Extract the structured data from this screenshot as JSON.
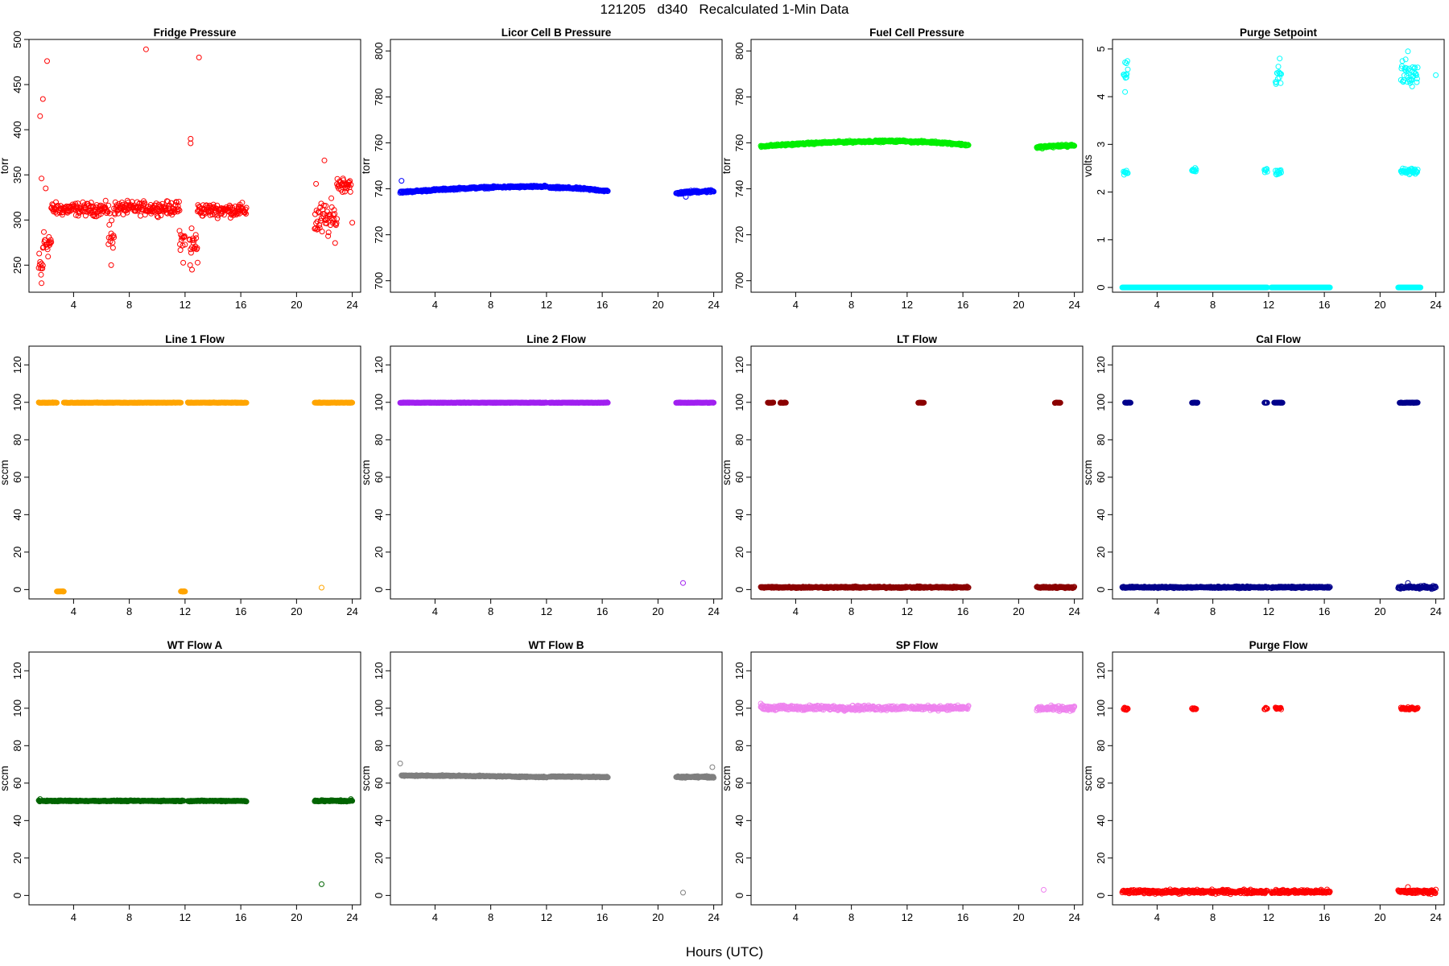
{
  "figure": {
    "title": "121205   d340   Recalculated 1-Min Data",
    "xlabel": "Hours (UTC)"
  },
  "chart_data": [
    {
      "type": "scatter",
      "title": "Fridge Pressure",
      "ylabel": "torr",
      "color": "#ff0000",
      "xlim": [
        0.8,
        24.6
      ],
      "ylim": [
        220,
        500
      ],
      "xticks": [
        4,
        8,
        12,
        16,
        20,
        24
      ],
      "yticks": [
        250,
        300,
        350,
        400,
        450,
        500
      ],
      "segments": [
        {
          "x0": 1.5,
          "x1": 1.8,
          "y": 245,
          "noise": 15
        },
        {
          "x0": 1.8,
          "x1": 2.4,
          "y": 275,
          "noise": 12
        },
        {
          "x0": 2.4,
          "x1": 6.5,
          "y": 312,
          "noise": 5
        },
        {
          "x0": 6.5,
          "x1": 6.9,
          "y": 285,
          "noise": 18
        },
        {
          "x0": 6.9,
          "x1": 11.6,
          "y": 313,
          "noise": 5
        },
        {
          "x0": 11.6,
          "x1": 12.0,
          "y": 275,
          "noise": 14
        },
        {
          "x0": 12.3,
          "x1": 12.9,
          "y": 272,
          "noise": 18
        },
        {
          "x0": 12.9,
          "x1": 16.4,
          "y": 311,
          "noise": 5
        },
        {
          "x0": 21.3,
          "x1": 22.9,
          "y": 300,
          "noise": 14
        },
        {
          "x0": 22.9,
          "x1": 23.9,
          "y": 340,
          "noise": 6
        }
      ],
      "points": [
        [
          1.6,
          415
        ],
        [
          1.7,
          346
        ],
        [
          1.8,
          434
        ],
        [
          2.1,
          476
        ],
        [
          9.2,
          489
        ],
        [
          12.4,
          390
        ],
        [
          12.4,
          385
        ],
        [
          13.0,
          480
        ],
        [
          22.0,
          366
        ],
        [
          24.0,
          297
        ],
        [
          21.4,
          340
        ],
        [
          2.0,
          335
        ],
        [
          6.7,
          250
        ],
        [
          12.5,
          245
        ],
        [
          1.7,
          230
        ]
      ]
    },
    {
      "type": "scatter",
      "title": "Licor Cell B Pressure",
      "ylabel": "torr",
      "color": "#0000ff",
      "xlim": [
        0.8,
        24.6
      ],
      "ylim": [
        695,
        805
      ],
      "xticks": [
        4,
        8,
        12,
        16,
        20,
        24
      ],
      "yticks": [
        700,
        720,
        740,
        760,
        780,
        800
      ],
      "segments": [
        {
          "x0": 1.5,
          "x1": 12.0,
          "y0": 738.5,
          "y1": 741,
          "noise": 0.3
        },
        {
          "x0": 12.2,
          "x1": 16.4,
          "y0": 740.5,
          "y1": 739,
          "noise": 0.3
        },
        {
          "x0": 21.3,
          "x1": 24.0,
          "y0": 738,
          "y1": 739,
          "noise": 0.4
        }
      ],
      "points": [
        [
          1.6,
          743.5
        ],
        [
          22.0,
          736.5
        ]
      ]
    },
    {
      "type": "scatter",
      "title": "Fuel Cell Pressure",
      "ylabel": "torr",
      "color": "#00ee00",
      "xlim": [
        0.8,
        24.6
      ],
      "ylim": [
        695,
        805
      ],
      "xticks": [
        4,
        8,
        12,
        16,
        20,
        24
      ],
      "yticks": [
        700,
        720,
        740,
        760,
        780,
        800
      ],
      "segments": [
        {
          "x0": 1.5,
          "x1": 12.0,
          "y0": 758.5,
          "y1": 760.8,
          "noise": 0.3
        },
        {
          "x0": 12.2,
          "x1": 16.4,
          "y0": 760.5,
          "y1": 759,
          "noise": 0.3
        },
        {
          "x0": 21.3,
          "x1": 24.0,
          "y0": 758,
          "y1": 758.8,
          "noise": 0.4
        }
      ],
      "points": []
    },
    {
      "type": "scatter",
      "title": "Purge Setpoint",
      "ylabel": "volts",
      "color": "#00ffff",
      "xlim": [
        0.8,
        24.6
      ],
      "ylim": [
        -0.1,
        5.2
      ],
      "xticks": [
        4,
        8,
        12,
        16,
        20,
        24
      ],
      "yticks": [
        0,
        1,
        2,
        3,
        4,
        5
      ],
      "segments": [
        {
          "x0": 1.5,
          "x1": 11.9,
          "y": 0,
          "noise": 0
        },
        {
          "x0": 12.2,
          "x1": 16.4,
          "y": 0,
          "noise": 0
        },
        {
          "x0": 21.3,
          "x1": 22.9,
          "y": 0,
          "noise": 0
        },
        {
          "x0": 1.6,
          "x1": 1.9,
          "y": 2.4,
          "noise": 0.04
        },
        {
          "x0": 6.5,
          "x1": 6.8,
          "y": 2.46,
          "noise": 0.03
        },
        {
          "x0": 11.7,
          "x1": 11.9,
          "y": 2.46,
          "noise": 0.03
        },
        {
          "x0": 12.5,
          "x1": 12.9,
          "y": 2.43,
          "noise": 0.04
        },
        {
          "x0": 21.5,
          "x1": 22.7,
          "y": 2.43,
          "noise": 0.05
        },
        {
          "x0": 1.6,
          "x1": 1.9,
          "y": 4.45,
          "noise": 0.18
        },
        {
          "x0": 12.5,
          "x1": 12.9,
          "y": 4.45,
          "noise": 0.15
        },
        {
          "x0": 21.5,
          "x1": 22.7,
          "y": 4.55,
          "noise": 0.2
        }
      ],
      "points": [
        [
          24.0,
          4.45
        ],
        [
          22.0,
          4.95
        ],
        [
          12.8,
          4.8
        ],
        [
          1.8,
          4.7
        ],
        [
          1.7,
          4.1
        ]
      ]
    },
    {
      "type": "scatter",
      "title": "Line 1 Flow",
      "ylabel": "sccm",
      "color": "#ffa500",
      "xlim": [
        0.8,
        24.6
      ],
      "ylim": [
        -5,
        130
      ],
      "xticks": [
        4,
        8,
        12,
        16,
        20,
        24
      ],
      "yticks": [
        0,
        20,
        40,
        60,
        80,
        100,
        120
      ],
      "segments": [
        {
          "x0": 1.5,
          "x1": 2.8,
          "y": 99.8,
          "noise": 0.1
        },
        {
          "x0": 3.3,
          "x1": 11.7,
          "y": 99.8,
          "noise": 0.1
        },
        {
          "x0": 12.2,
          "x1": 16.4,
          "y": 99.8,
          "noise": 0.1
        },
        {
          "x0": 21.3,
          "x1": 24.0,
          "y": 99.8,
          "noise": 0.1
        },
        {
          "x0": 2.8,
          "x1": 3.3,
          "y": -1,
          "noise": 0.1
        },
        {
          "x0": 11.7,
          "x1": 12.0,
          "y": -1,
          "noise": 0.1
        }
      ],
      "points": [
        [
          21.8,
          1
        ]
      ]
    },
    {
      "type": "scatter",
      "title": "Line 2 Flow",
      "ylabel": "sccm",
      "color": "#a020f0",
      "xlim": [
        0.8,
        24.6
      ],
      "ylim": [
        -5,
        130
      ],
      "xticks": [
        4,
        8,
        12,
        16,
        20,
        24
      ],
      "yticks": [
        0,
        20,
        40,
        60,
        80,
        100,
        120
      ],
      "segments": [
        {
          "x0": 1.5,
          "x1": 12.0,
          "y": 99.8,
          "noise": 0.1
        },
        {
          "x0": 12.2,
          "x1": 16.4,
          "y": 99.8,
          "noise": 0.1
        },
        {
          "x0": 21.3,
          "x1": 24.0,
          "y": 99.8,
          "noise": 0.1
        }
      ],
      "points": [
        [
          21.8,
          3.5
        ]
      ]
    },
    {
      "type": "scatter",
      "title": "LT Flow",
      "ylabel": "sccm",
      "color": "#8b0000",
      "xlim": [
        0.8,
        24.6
      ],
      "ylim": [
        -5,
        130
      ],
      "xticks": [
        4,
        8,
        12,
        16,
        20,
        24
      ],
      "yticks": [
        0,
        20,
        40,
        60,
        80,
        100,
        120
      ],
      "segments": [
        {
          "x0": 1.5,
          "x1": 12.0,
          "y": 1.2,
          "noise": 0.3
        },
        {
          "x0": 12.2,
          "x1": 16.4,
          "y": 1.2,
          "noise": 0.3
        },
        {
          "x0": 21.3,
          "x1": 24.0,
          "y": 1.2,
          "noise": 0.3
        },
        {
          "x0": 2.0,
          "x1": 2.4,
          "y": 99.8,
          "noise": 0.1
        },
        {
          "x0": 2.9,
          "x1": 3.3,
          "y": 99.8,
          "noise": 0.1
        },
        {
          "x0": 12.8,
          "x1": 13.2,
          "y": 99.8,
          "noise": 0.1
        },
        {
          "x0": 22.6,
          "x1": 23.0,
          "y": 99.8,
          "noise": 0.1
        }
      ],
      "points": []
    },
    {
      "type": "scatter",
      "title": "Cal Flow",
      "ylabel": "sccm",
      "color": "#00008b",
      "xlim": [
        0.8,
        24.6
      ],
      "ylim": [
        -5,
        130
      ],
      "xticks": [
        4,
        8,
        12,
        16,
        20,
        24
      ],
      "yticks": [
        0,
        20,
        40,
        60,
        80,
        100,
        120
      ],
      "segments": [
        {
          "x0": 1.5,
          "x1": 12.0,
          "y": 1.2,
          "noise": 0.3
        },
        {
          "x0": 12.2,
          "x1": 16.4,
          "y": 1.2,
          "noise": 0.3
        },
        {
          "x0": 21.3,
          "x1": 24.0,
          "y": 1.2,
          "noise": 0.5
        },
        {
          "x0": 1.7,
          "x1": 2.1,
          "y": 99.8,
          "noise": 0.1
        },
        {
          "x0": 6.5,
          "x1": 6.9,
          "y": 99.8,
          "noise": 0.1
        },
        {
          "x0": 11.7,
          "x1": 11.9,
          "y": 99.8,
          "noise": 0.1
        },
        {
          "x0": 12.4,
          "x1": 13.0,
          "y": 99.8,
          "noise": 0.1
        },
        {
          "x0": 21.4,
          "x1": 22.7,
          "y": 99.8,
          "noise": 0.1
        }
      ],
      "points": [
        [
          22.0,
          3.5
        ]
      ]
    },
    {
      "type": "scatter",
      "title": "WT Flow A",
      "ylabel": "sccm",
      "color": "#006400",
      "xlim": [
        0.8,
        24.6
      ],
      "ylim": [
        -5,
        130
      ],
      "xticks": [
        4,
        8,
        12,
        16,
        20,
        24
      ],
      "yticks": [
        0,
        20,
        40,
        60,
        80,
        100,
        120
      ],
      "segments": [
        {
          "x0": 1.5,
          "x1": 11.9,
          "y": 50.5,
          "noise": 0.2
        },
        {
          "x0": 12.2,
          "x1": 16.4,
          "y": 50.5,
          "noise": 0.2
        },
        {
          "x0": 21.3,
          "x1": 24.0,
          "y": 50.5,
          "noise": 0.3
        }
      ],
      "points": [
        [
          1.6,
          51.5
        ],
        [
          21.8,
          6
        ],
        [
          23.9,
          51.5
        ]
      ]
    },
    {
      "type": "scatter",
      "title": "WT Flow B",
      "ylabel": "sccm",
      "color": "#7f7f7f",
      "xlim": [
        0.8,
        24.6
      ],
      "ylim": [
        -5,
        130
      ],
      "xticks": [
        4,
        8,
        12,
        16,
        20,
        24
      ],
      "yticks": [
        0,
        20,
        40,
        60,
        80,
        100,
        120
      ],
      "segments": [
        {
          "x0": 1.6,
          "x1": 12.0,
          "y0": 64,
          "y1": 63.2,
          "noise": 0.2
        },
        {
          "x0": 12.2,
          "x1": 16.4,
          "y0": 63.5,
          "y1": 63.2,
          "noise": 0.2
        },
        {
          "x0": 21.3,
          "x1": 24.0,
          "y": 63.3,
          "noise": 0.3
        }
      ],
      "points": [
        [
          1.5,
          70.5
        ],
        [
          21.8,
          1.5
        ],
        [
          23.9,
          68.5
        ]
      ]
    },
    {
      "type": "scatter",
      "title": "SP Flow",
      "ylabel": "sccm",
      "color": "#ee82ee",
      "xlim": [
        0.8,
        24.6
      ],
      "ylim": [
        -5,
        130
      ],
      "xticks": [
        4,
        8,
        12,
        16,
        20,
        24
      ],
      "yticks": [
        0,
        20,
        40,
        60,
        80,
        100,
        120
      ],
      "segments": [
        {
          "x0": 1.5,
          "x1": 12.0,
          "y": 100.2,
          "noise": 0.9
        },
        {
          "x0": 12.2,
          "x1": 16.4,
          "y": 100.2,
          "noise": 0.8
        },
        {
          "x0": 21.3,
          "x1": 24.0,
          "y": 99.8,
          "noise": 0.9
        }
      ],
      "points": [
        [
          1.5,
          102.5
        ],
        [
          21.8,
          3
        ],
        [
          24.0,
          101
        ]
      ]
    },
    {
      "type": "scatter",
      "title": "Purge Flow",
      "ylabel": "sccm",
      "color": "#ff0000",
      "xlim": [
        0.8,
        24.6
      ],
      "ylim": [
        -5,
        130
      ],
      "xticks": [
        4,
        8,
        12,
        16,
        20,
        24
      ],
      "yticks": [
        0,
        20,
        40,
        60,
        80,
        100,
        120
      ],
      "segments": [
        {
          "x0": 1.5,
          "x1": 11.9,
          "y": 2,
          "noise": 0.7
        },
        {
          "x0": 12.2,
          "x1": 16.4,
          "y": 2,
          "noise": 0.7
        },
        {
          "x0": 21.3,
          "x1": 24.0,
          "y": 2,
          "noise": 0.7
        },
        {
          "x0": 1.6,
          "x1": 1.9,
          "y": 99.8,
          "noise": 0.4
        },
        {
          "x0": 6.5,
          "x1": 6.8,
          "y": 99.8,
          "noise": 0.4
        },
        {
          "x0": 11.7,
          "x1": 11.9,
          "y": 99.8,
          "noise": 0.4
        },
        {
          "x0": 12.5,
          "x1": 12.9,
          "y": 99.8,
          "noise": 0.5
        },
        {
          "x0": 21.5,
          "x1": 22.7,
          "y": 99.8,
          "noise": 0.5
        }
      ],
      "points": [
        [
          22.0,
          4.5
        ]
      ]
    }
  ]
}
